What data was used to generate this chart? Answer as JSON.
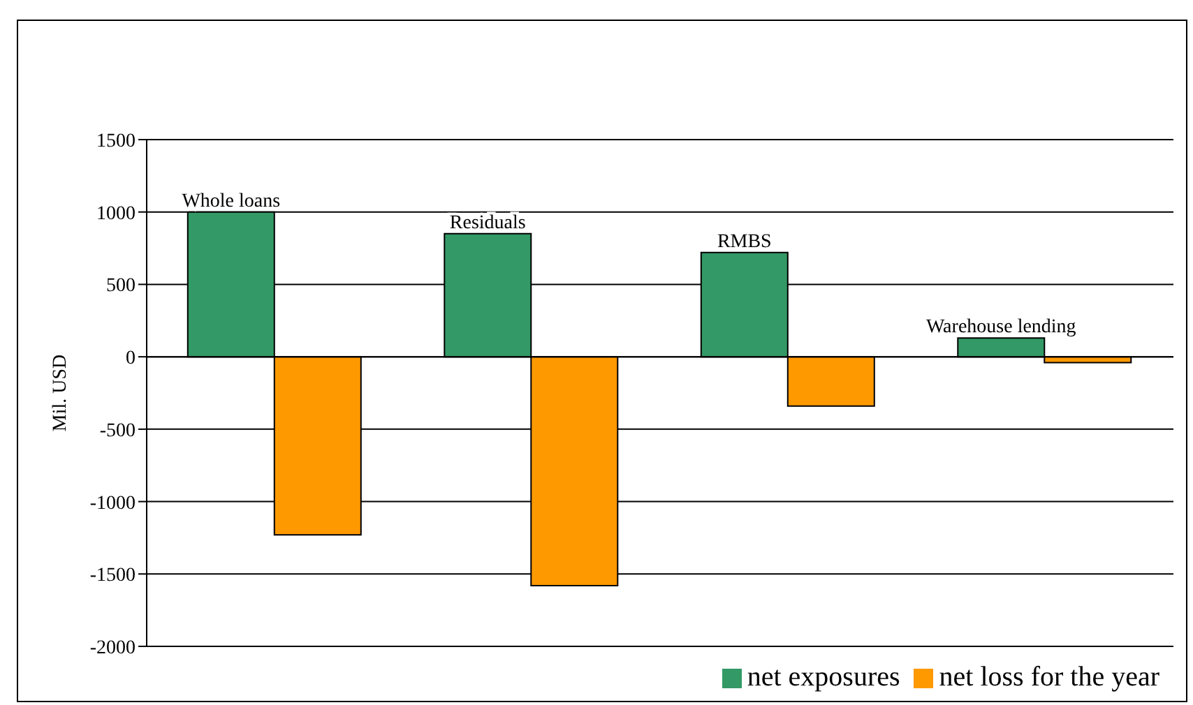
{
  "chart_data": {
    "type": "bar",
    "ylabel": "Mil. USD",
    "categories": [
      "Whole loans",
      "Residuals",
      "RMBS",
      "Warehouse lending"
    ],
    "series": [
      {
        "name": "net exposures",
        "color": "#339966",
        "values": [
          1000,
          850,
          720,
          130
        ]
      },
      {
        "name": "net loss for the year",
        "color": "#ff9900",
        "values": [
          -1230,
          -1580,
          -340,
          -40
        ]
      }
    ],
    "ylim": [
      -2000,
      1500
    ],
    "yticks": [
      -2000,
      -1500,
      -1000,
      -500,
      0,
      500,
      1000,
      1500
    ],
    "grid": "y",
    "legend": "bottom right",
    "tick_labels": "y"
  }
}
